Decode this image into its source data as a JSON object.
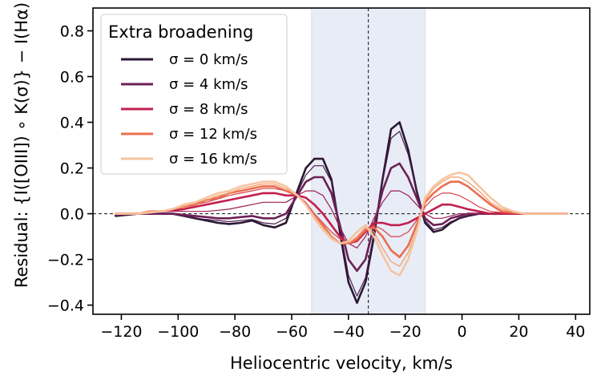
{
  "chart_data": {
    "type": "line",
    "xlabel": "Heliocentric velocity, km/s",
    "ylabel": "Residual: {I([OIII]) ∘ K(σ)} − I(Hα)",
    "xlim": [
      -130,
      45
    ],
    "ylim": [
      -0.44,
      0.9
    ],
    "xticks": [
      -120,
      -100,
      -80,
      -60,
      -40,
      -20,
      0,
      20,
      40
    ],
    "yticks": [
      -0.4,
      -0.2,
      0.0,
      0.2,
      0.4,
      0.6,
      0.8
    ],
    "reference_lines": {
      "hline_y": 0.0,
      "vline_x": -33
    },
    "shaded_band": {
      "x_start": -53,
      "x_end": -13,
      "color": "#e8ecf6"
    },
    "grid": false,
    "legend": {
      "title": "Extra broadening",
      "position": "top-left"
    },
    "x": [
      -122,
      -118,
      -114,
      -110,
      -106,
      -102,
      -98,
      -94,
      -90,
      -86,
      -82,
      -78,
      -74,
      -70,
      -66,
      -62,
      -58,
      -55,
      -52,
      -49,
      -46,
      -43,
      -40,
      -37,
      -34,
      -31,
      -28,
      -25,
      -22,
      -19,
      -16,
      -13,
      -10,
      -7,
      -4,
      -1,
      2,
      6,
      10,
      14,
      18,
      22,
      26,
      30,
      34,
      37
    ],
    "series": [
      {
        "name": "σ = 0 km/s",
        "color": "#2b1735",
        "width": 2.6,
        "values": [
          -0.01,
          -0.005,
          0,
          0.0,
          0.0,
          0.0,
          -0.01,
          -0.02,
          -0.03,
          -0.04,
          -0.045,
          -0.04,
          -0.03,
          -0.05,
          -0.06,
          -0.04,
          0.1,
          0.2,
          0.24,
          0.24,
          0.15,
          -0.08,
          -0.3,
          -0.39,
          -0.3,
          -0.1,
          0.15,
          0.37,
          0.4,
          0.28,
          0.1,
          -0.04,
          -0.08,
          -0.07,
          -0.04,
          -0.02,
          -0.01,
          0.0,
          0.0,
          0.0,
          0.0,
          0.0,
          0.0,
          0.0,
          0.0,
          0.0
        ]
      },
      {
        "name": "",
        "color": "#4a1f4a",
        "width": 1.2,
        "values": [
          -0.01,
          -0.005,
          0,
          0.0,
          0.0,
          0.0,
          -0.01,
          -0.02,
          -0.025,
          -0.03,
          -0.035,
          -0.03,
          -0.025,
          -0.04,
          -0.045,
          -0.02,
          0.09,
          0.17,
          0.21,
          0.21,
          0.14,
          -0.06,
          -0.27,
          -0.36,
          -0.28,
          -0.08,
          0.14,
          0.33,
          0.36,
          0.26,
          0.1,
          -0.03,
          -0.07,
          -0.06,
          -0.035,
          -0.02,
          -0.01,
          0.0,
          0.0,
          0.0,
          0.0,
          0.0,
          0.0,
          0.0,
          0.0,
          0.0
        ]
      },
      {
        "name": "σ = 4 km/s",
        "color": "#6c2157",
        "width": 2.6,
        "values": [
          -0.005,
          0.0,
          0.0,
          0.0,
          0.0,
          0.0,
          -0.005,
          -0.01,
          -0.015,
          -0.02,
          -0.02,
          -0.015,
          -0.01,
          -0.02,
          -0.02,
          0.0,
          0.08,
          0.14,
          0.16,
          0.16,
          0.09,
          -0.05,
          -0.2,
          -0.25,
          -0.2,
          -0.05,
          0.1,
          0.2,
          0.22,
          0.16,
          0.07,
          -0.02,
          -0.05,
          -0.045,
          -0.02,
          -0.01,
          0.0,
          0.0,
          0.0,
          0.0,
          0.0,
          0.0,
          0.0,
          0.0,
          0.0,
          0.0
        ]
      },
      {
        "name": "",
        "color": "#991e52",
        "width": 1.2,
        "values": [
          0.0,
          0.0,
          0.0,
          0.005,
          0.01,
          0.01,
          0.01,
          0.01,
          0.01,
          0.015,
          0.02,
          0.03,
          0.04,
          0.05,
          0.05,
          0.05,
          0.08,
          0.1,
          0.1,
          0.08,
          0.02,
          -0.06,
          -0.13,
          -0.15,
          -0.1,
          -0.02,
          0.05,
          0.1,
          0.1,
          0.08,
          0.04,
          0.0,
          -0.02,
          -0.02,
          -0.01,
          0.0,
          0.0,
          0.0,
          0.0,
          0.0,
          0.0,
          0.0,
          0.0,
          0.0,
          0.0,
          0.0
        ]
      },
      {
        "name": "σ = 8 km/s",
        "color": "#c21f4e",
        "width": 2.6,
        "values": [
          0.0,
          0.0,
          0.0,
          0.005,
          0.01,
          0.015,
          0.02,
          0.03,
          0.04,
          0.05,
          0.06,
          0.07,
          0.08,
          0.09,
          0.09,
          0.08,
          0.08,
          0.07,
          0.04,
          0.0,
          -0.05,
          -0.1,
          -0.13,
          -0.12,
          -0.08,
          -0.04,
          -0.04,
          -0.05,
          -0.05,
          -0.04,
          -0.02,
          0.0,
          0.02,
          0.04,
          0.04,
          0.03,
          0.02,
          0.01,
          0.0,
          0.0,
          0.0,
          0.0,
          0.0,
          0.0,
          0.0,
          0.0
        ]
      },
      {
        "name": "",
        "color": "#d9404a",
        "width": 1.2,
        "values": [
          0.0,
          0.0,
          0.0,
          0.005,
          0.01,
          0.02,
          0.03,
          0.04,
          0.05,
          0.065,
          0.08,
          0.09,
          0.1,
          0.11,
          0.11,
          0.1,
          0.08,
          0.05,
          0.0,
          -0.04,
          -0.08,
          -0.11,
          -0.13,
          -0.12,
          -0.08,
          -0.05,
          -0.07,
          -0.1,
          -0.1,
          -0.08,
          -0.03,
          0.03,
          0.07,
          0.09,
          0.09,
          0.08,
          0.06,
          0.03,
          0.01,
          0.005,
          0.0,
          0.0,
          0.0,
          0.0,
          0.0,
          0.0
        ]
      },
      {
        "name": "σ = 12 km/s",
        "color": "#e96f4f",
        "width": 2.6,
        "values": [
          0.0,
          0.0,
          0.0,
          0.01,
          0.01,
          0.02,
          0.03,
          0.04,
          0.06,
          0.07,
          0.09,
          0.1,
          0.11,
          0.12,
          0.12,
          0.1,
          0.08,
          0.04,
          -0.01,
          -0.05,
          -0.1,
          -0.13,
          -0.13,
          -0.11,
          -0.07,
          -0.06,
          -0.1,
          -0.16,
          -0.19,
          -0.14,
          -0.05,
          0.05,
          0.09,
          0.12,
          0.14,
          0.14,
          0.12,
          0.08,
          0.04,
          0.01,
          0.005,
          0.0,
          0.0,
          0.0,
          0.0,
          0.0
        ]
      },
      {
        "name": "",
        "color": "#f19a6a",
        "width": 1.2,
        "values": [
          0.0,
          0.0,
          0.0,
          0.01,
          0.01,
          0.02,
          0.03,
          0.05,
          0.06,
          0.08,
          0.09,
          0.11,
          0.12,
          0.13,
          0.13,
          0.11,
          0.08,
          0.04,
          -0.01,
          -0.06,
          -0.1,
          -0.13,
          -0.13,
          -0.1,
          -0.06,
          -0.08,
          -0.15,
          -0.21,
          -0.23,
          -0.17,
          -0.07,
          0.06,
          0.11,
          0.14,
          0.16,
          0.16,
          0.14,
          0.1,
          0.05,
          0.02,
          0.01,
          0.0,
          0.0,
          0.0,
          0.0,
          0.0
        ]
      },
      {
        "name": "σ = 16 km/s",
        "color": "#f6c4a0",
        "width": 2.6,
        "values": [
          0.0,
          0.0,
          0.0,
          0.005,
          0.01,
          0.02,
          0.04,
          0.05,
          0.07,
          0.09,
          0.1,
          0.12,
          0.13,
          0.14,
          0.14,
          0.12,
          0.08,
          0.04,
          -0.02,
          -0.07,
          -0.11,
          -0.13,
          -0.12,
          -0.08,
          -0.05,
          -0.1,
          -0.18,
          -0.25,
          -0.27,
          -0.2,
          -0.08,
          0.07,
          0.12,
          0.15,
          0.17,
          0.18,
          0.17,
          0.12,
          0.07,
          0.03,
          0.01,
          0.0,
          0.0,
          0.0,
          0.0,
          0.0
        ]
      }
    ]
  }
}
